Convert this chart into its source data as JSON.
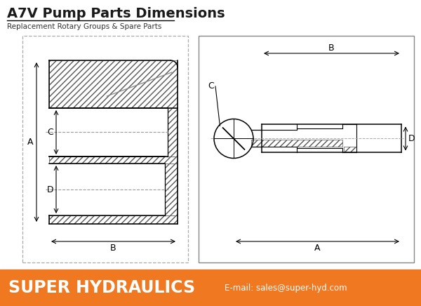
{
  "title": "A7V Pump Parts Dimensions",
  "subtitle": "Replacement Rotary Groups & Spare Parts",
  "footer_text": "SUPER HYDRAULICS",
  "footer_email": "E-mail: sales@super-hyd.com",
  "footer_color": "#F07820",
  "title_color": "#1a1a1a",
  "bg_color": "#ffffff",
  "figsize": [
    6.0,
    4.36
  ],
  "dpi": 100
}
